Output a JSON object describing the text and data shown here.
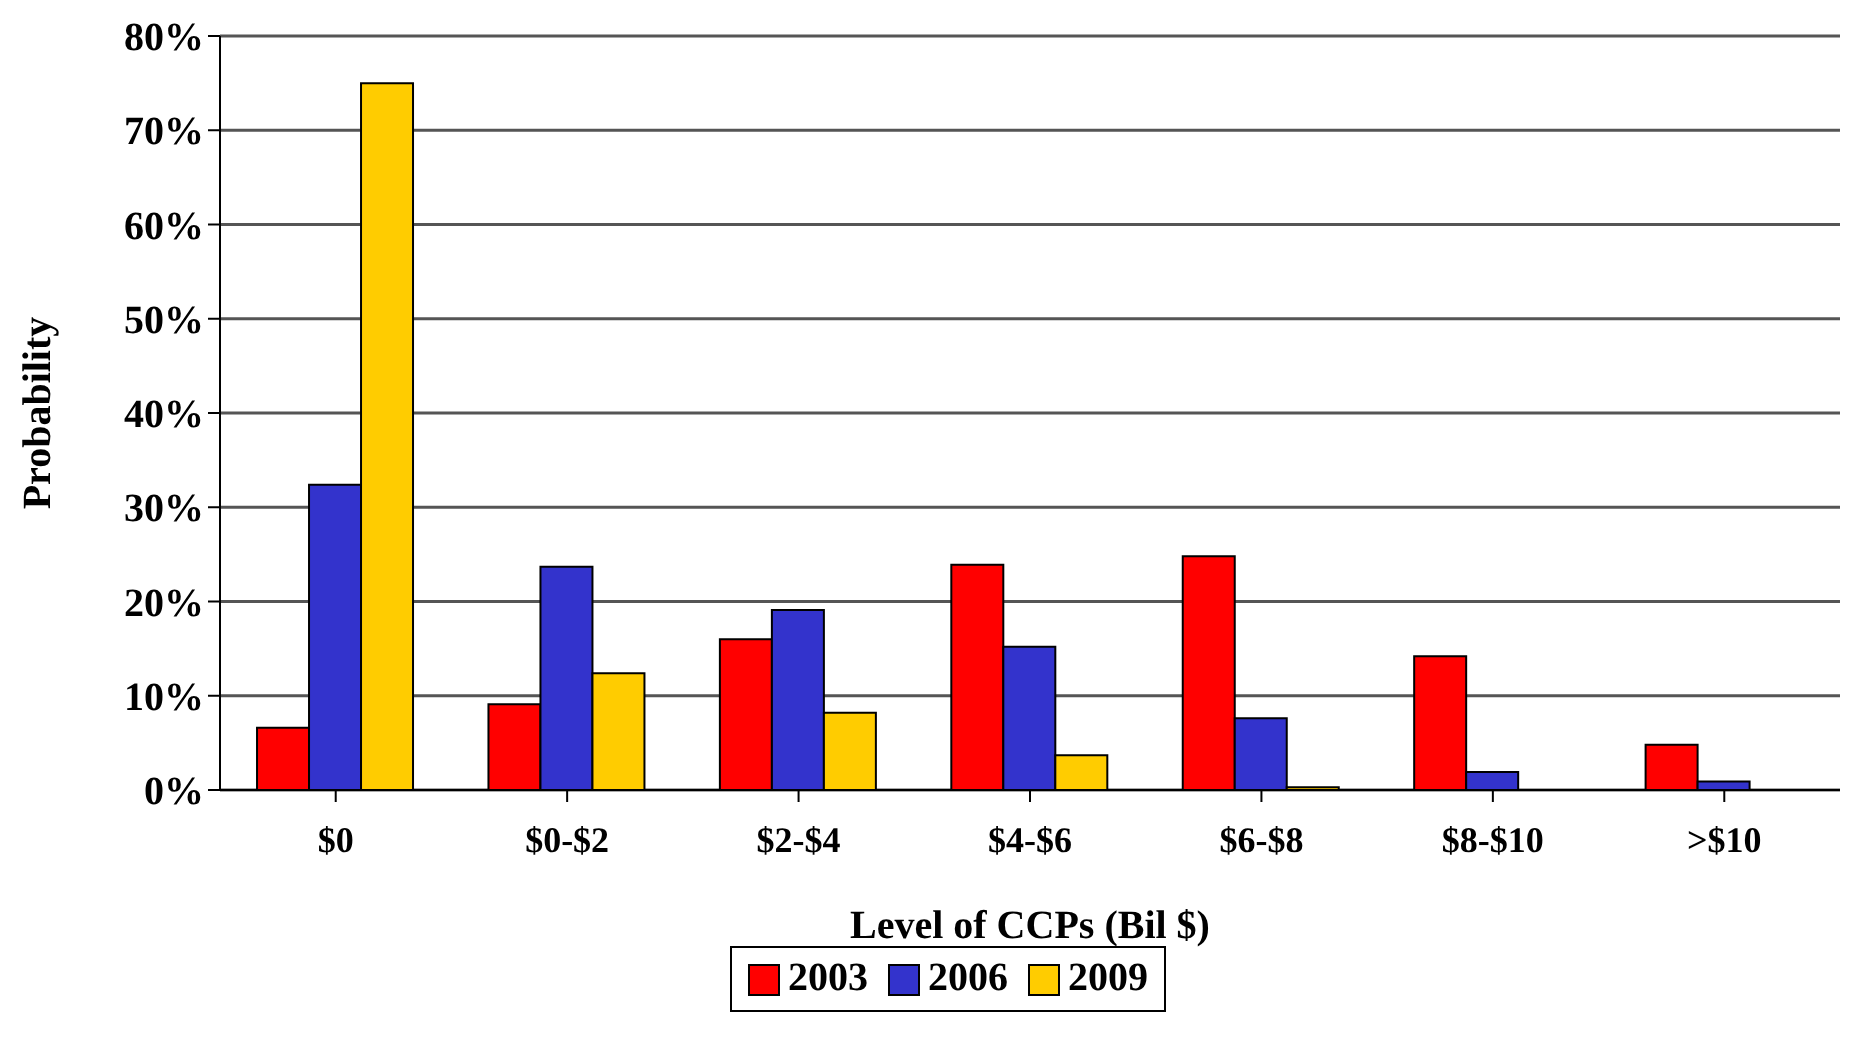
{
  "chart_data": {
    "type": "bar",
    "xlabel": "Level of CCPs (Bil $)",
    "ylabel": "Probability",
    "categories": [
      "$0",
      "$0-$2",
      "$2-$4",
      "$4-$6",
      "$6-$8",
      "$8-$10",
      ">$10"
    ],
    "series": [
      {
        "name": "2003",
        "color": "#ff0000",
        "values": [
          6.6,
          9.1,
          16.0,
          23.9,
          24.8,
          14.2,
          4.8
        ]
      },
      {
        "name": "2006",
        "color": "#3333cc",
        "values": [
          32.4,
          23.7,
          19.1,
          15.2,
          7.6,
          1.9,
          0.9
        ]
      },
      {
        "name": "2009",
        "color": "#ffcc00",
        "values": [
          75,
          12.4,
          8.2,
          3.7,
          0.3,
          0,
          0
        ]
      }
    ],
    "ylim": [
      0,
      80
    ],
    "yticks": [
      {
        "value": 0,
        "label": "0%"
      },
      {
        "value": 10,
        "label": "10%"
      },
      {
        "value": 20,
        "label": "20%"
      },
      {
        "value": 30,
        "label": "30%"
      },
      {
        "value": 40,
        "label": "40%"
      },
      {
        "value": 50,
        "label": "50%"
      },
      {
        "value": 60,
        "label": "60%"
      },
      {
        "value": 70,
        "label": "70%"
      },
      {
        "value": 80,
        "label": "80%"
      }
    ],
    "grid": "y",
    "legend": "bottom"
  }
}
